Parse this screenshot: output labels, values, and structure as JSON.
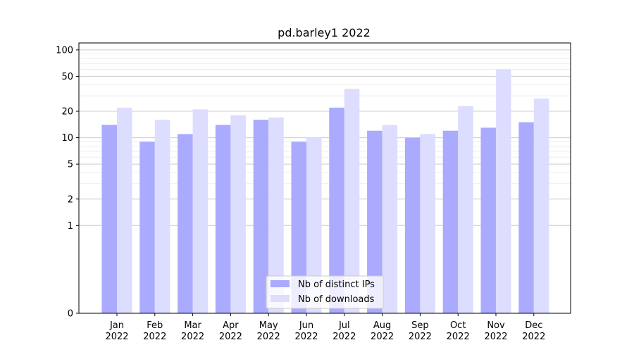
{
  "chart_data": {
    "type": "bar",
    "title": "pd.barley1 2022",
    "xlabel": "",
    "ylabel": "",
    "yscale": "symlog",
    "ylim": [
      0,
      120
    ],
    "yticks": [
      0,
      1,
      2,
      5,
      10,
      20,
      50,
      100
    ],
    "categories": [
      {
        "month": "Jan",
        "year": "2022"
      },
      {
        "month": "Feb",
        "year": "2022"
      },
      {
        "month": "Mar",
        "year": "2022"
      },
      {
        "month": "Apr",
        "year": "2022"
      },
      {
        "month": "May",
        "year": "2022"
      },
      {
        "month": "Jun",
        "year": "2022"
      },
      {
        "month": "Jul",
        "year": "2022"
      },
      {
        "month": "Aug",
        "year": "2022"
      },
      {
        "month": "Sep",
        "year": "2022"
      },
      {
        "month": "Oct",
        "year": "2022"
      },
      {
        "month": "Nov",
        "year": "2022"
      },
      {
        "month": "Dec",
        "year": "2022"
      }
    ],
    "series": [
      {
        "name": "Nb of distinct IPs",
        "color": "#aaaaff",
        "values": [
          14,
          9,
          11,
          14,
          16,
          9,
          22,
          12,
          10,
          12,
          13,
          15
        ]
      },
      {
        "name": "Nb of downloads",
        "color": "#ddddff",
        "values": [
          22,
          16,
          21,
          18,
          17,
          10,
          36,
          14,
          11,
          23,
          60,
          28
        ]
      }
    ],
    "grid": true,
    "legend": "bottom-center"
  }
}
